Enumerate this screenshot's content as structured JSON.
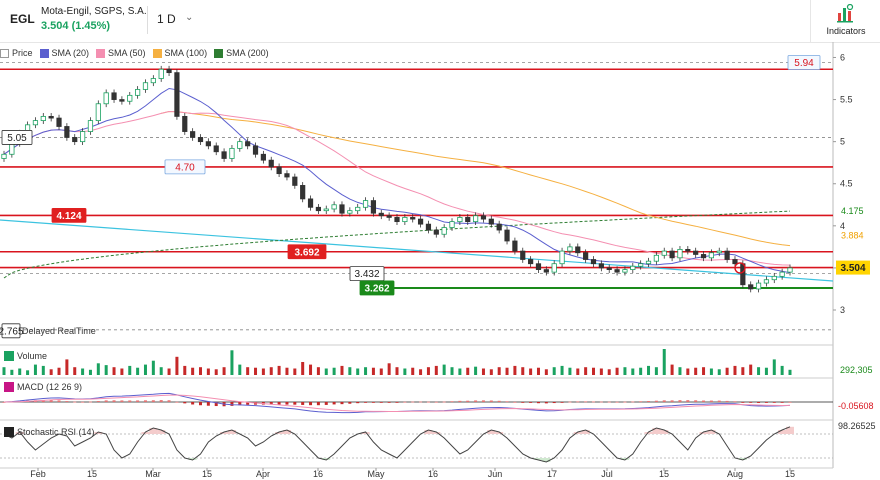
{
  "header": {
    "ticker": "EGL",
    "company": "Mota-Engil, SGPS, S.A.",
    "price_change": "3.504 (1.45%)",
    "interval": "1 D",
    "indicators_label": "Indicators"
  },
  "colors": {
    "up": "#1aa260",
    "down": "#333333",
    "price_line": "#d9141e",
    "sma20": "#5b5fcf",
    "sma50": "#f48fb1",
    "sma100": "#f5b041",
    "sma200": "#2e7d32",
    "trend": "#3cc3e0"
  },
  "legend": [
    {
      "label": "Price",
      "color": "#ffffff"
    },
    {
      "label": "SMA (20)",
      "color": "#5b5fcf"
    },
    {
      "label": "SMA (50)",
      "color": "#f48fb1"
    },
    {
      "label": "SMA (100)",
      "color": "#f5b041"
    },
    {
      "label": "SMA (200)",
      "color": "#2e7d32"
    }
  ],
  "chart_data": {
    "type": "candlestick",
    "y_ticks": [
      "6",
      "5.5",
      "5",
      "4.5",
      "4",
      "3.5",
      "3"
    ],
    "x_ticks": [
      "Feb",
      "15",
      "Mar",
      "15",
      "Apr",
      "16",
      "May",
      "16",
      "Jun",
      "17",
      "Jul",
      "15",
      "Aug",
      "15"
    ],
    "price_levels": [
      {
        "label": "5.94",
        "value": 5.94
      },
      {
        "label": "5.05",
        "value": 5.05
      },
      {
        "label": "4.70",
        "value": 4.7
      },
      {
        "label": "4.124",
        "value": 4.124
      },
      {
        "label": "3.692",
        "value": 3.692
      },
      {
        "label": "3.432",
        "value": 3.432
      },
      {
        "label": "3.262",
        "value": 3.262
      },
      {
        "label": "2.765",
        "value": 2.765
      }
    ],
    "side_values": {
      "sma200": "4.175",
      "sma100": "3.884",
      "last": "3.504"
    },
    "realtime_label": "Delayed RealTime",
    "closes": [
      4.85,
      4.98,
      5.1,
      5.2,
      5.25,
      5.3,
      5.28,
      5.18,
      5.05,
      5.0,
      5.12,
      5.25,
      5.45,
      5.58,
      5.5,
      5.48,
      5.55,
      5.62,
      5.7,
      5.75,
      5.86,
      5.82,
      5.3,
      5.12,
      5.05,
      5.0,
      4.95,
      4.88,
      4.8,
      4.92,
      5.0,
      4.95,
      4.85,
      4.78,
      4.7,
      4.62,
      4.58,
      4.48,
      4.32,
      4.22,
      4.18,
      4.2,
      4.25,
      4.15,
      4.18,
      4.22,
      4.3,
      4.15,
      4.12,
      4.1,
      4.05,
      4.1,
      4.08,
      4.02,
      3.95,
      3.9,
      3.98,
      4.05,
      4.1,
      4.05,
      4.12,
      4.08,
      4.02,
      3.95,
      3.82,
      3.7,
      3.6,
      3.55,
      3.48,
      3.45,
      3.55,
      3.7,
      3.75,
      3.68,
      3.6,
      3.55,
      3.5,
      3.48,
      3.45,
      3.48,
      3.52,
      3.55,
      3.58,
      3.65,
      3.7,
      3.62,
      3.72,
      3.7,
      3.66,
      3.62,
      3.68,
      3.7,
      3.6,
      3.55,
      3.3,
      3.25,
      3.32,
      3.36,
      3.4,
      3.45,
      3.5
    ],
    "volume_label": "Volume",
    "volume_value": "292,305",
    "volumes": [
      30,
      20,
      25,
      18,
      40,
      35,
      22,
      28,
      60,
      30,
      25,
      20,
      45,
      38,
      30,
      25,
      35,
      28,
      40,
      55,
      30,
      25,
      70,
      35,
      28,
      30,
      25,
      22,
      30,
      95,
      40,
      30,
      28,
      25,
      30,
      35,
      28,
      25,
      50,
      40,
      30,
      25,
      28,
      35,
      30,
      25,
      30,
      28,
      25,
      45,
      30,
      25,
      28,
      22,
      30,
      35,
      40,
      30,
      25,
      28,
      32,
      25,
      22,
      30,
      28,
      35,
      30,
      25,
      28,
      22,
      30,
      35,
      28,
      25,
      30,
      28,
      25,
      22,
      28,
      30,
      25,
      28,
      35,
      30,
      100,
      40,
      30,
      25,
      28,
      30,
      25,
      22,
      28,
      35,
      30,
      40,
      30,
      28,
      60,
      35,
      20
    ],
    "macd_label": "MACD (12 26 9)",
    "macd_value": "-0.05608",
    "stoch_label": "Stochastic RSI (14)",
    "stoch_value": "98.26525",
    "stoch": [
      80,
      70,
      85,
      60,
      40,
      55,
      70,
      80,
      75,
      50,
      60,
      70,
      85,
      80,
      40,
      20,
      30,
      60,
      85,
      95,
      90,
      80,
      40,
      20,
      15,
      30,
      60,
      75,
      85,
      90,
      80,
      70,
      50,
      60,
      75,
      85,
      90,
      80,
      60,
      40,
      20,
      15,
      30,
      50,
      70,
      80,
      85,
      60,
      40,
      30,
      20,
      40,
      60,
      80,
      90,
      85,
      70,
      50,
      30,
      40,
      60,
      80,
      90,
      85,
      70,
      50,
      30,
      20,
      15,
      10,
      20,
      40,
      70,
      85,
      90,
      80,
      60,
      40,
      20,
      15,
      30,
      60,
      85,
      95,
      90,
      80,
      60,
      40,
      70,
      85,
      90,
      80,
      50,
      20,
      15,
      25,
      45,
      65,
      80,
      90,
      98
    ]
  }
}
